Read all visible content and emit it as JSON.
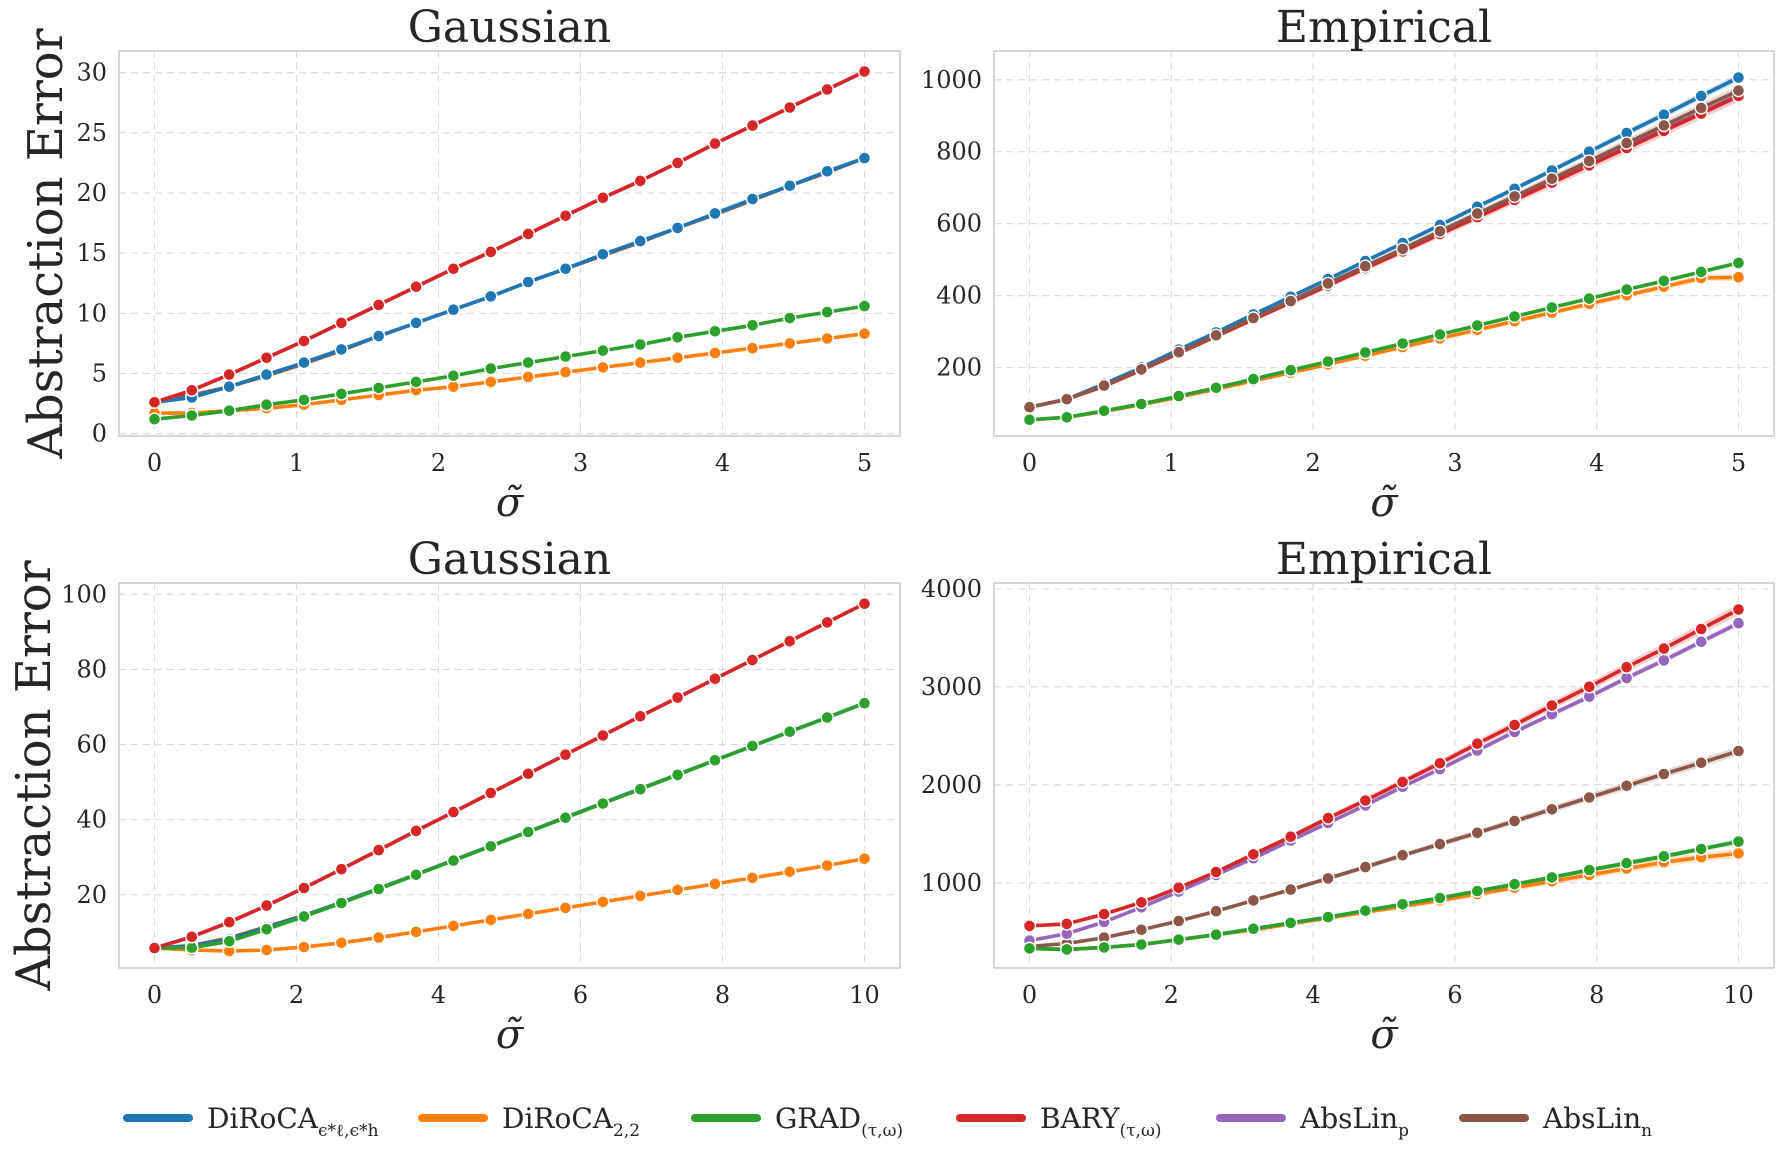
{
  "legend": [
    {
      "name": "DiRoCA",
      "sub": "ϵ*ℓ,ϵ*h",
      "color": "#1f77b4"
    },
    {
      "name": "DiRoCA",
      "sub": "2,2",
      "color": "#ff7f0e"
    },
    {
      "name": "GRAD",
      "sub": "(τ,ω)",
      "color": "#2ca02c"
    },
    {
      "name": "BARY",
      "sub": "(τ,ω)",
      "color": "#d62728"
    },
    {
      "name": "AbsLin",
      "sub": "p",
      "color": "#9467bd"
    },
    {
      "name": "AbsLin",
      "sub": "n",
      "color": "#8c564b"
    }
  ],
  "chart_data": [
    {
      "type": "line",
      "title": "Gaussian",
      "ylabel": "Abstraction Error",
      "xlabel": "σ̃",
      "xlim": [
        -0.25,
        5.25
      ],
      "ylim": [
        -0.2,
        31.8
      ],
      "xticks": [
        0,
        1,
        2,
        3,
        4,
        5
      ],
      "yticks": [
        0,
        5,
        10,
        15,
        20,
        25,
        30
      ],
      "x": [
        0,
        0.263,
        0.526,
        0.789,
        1.053,
        1.316,
        1.579,
        1.842,
        2.105,
        2.368,
        2.632,
        2.895,
        3.158,
        3.421,
        3.684,
        3.947,
        4.211,
        4.474,
        4.737,
        5.0
      ],
      "series": [
        {
          "name": "AbsLin_n",
          "color": "#8c564b",
          "values": [
            2.6,
            3.2,
            3.9,
            4.8,
            5.8,
            6.9,
            8.1,
            9.2,
            10.3,
            11.4,
            12.6,
            13.7,
            14.8,
            15.9,
            17.1,
            18.2,
            19.4,
            20.6,
            21.7,
            22.9
          ]
        },
        {
          "name": "AbsLin_p",
          "color": "#9467bd",
          "values": [
            2.6,
            3.6,
            4.9,
            6.3,
            7.7,
            9.2,
            10.7,
            12.2,
            13.7,
            15.1,
            16.6,
            18.1,
            19.6,
            21.0,
            22.5,
            24.1,
            25.6,
            27.1,
            28.6,
            30.1
          ]
        },
        {
          "name": "DiRoCA_ϵ",
          "color": "#1f77b4",
          "values": [
            2.6,
            3.0,
            3.9,
            4.9,
            5.9,
            7.0,
            8.1,
            9.2,
            10.3,
            11.4,
            12.6,
            13.7,
            14.9,
            16.0,
            17.1,
            18.3,
            19.5,
            20.6,
            21.8,
            22.9
          ]
        },
        {
          "name": "DiRoCA_2,2",
          "color": "#ff7f0e",
          "values": [
            1.7,
            1.7,
            1.9,
            2.1,
            2.4,
            2.8,
            3.2,
            3.6,
            3.9,
            4.3,
            4.7,
            5.1,
            5.5,
            5.9,
            6.3,
            6.7,
            7.1,
            7.5,
            7.9,
            8.3
          ]
        },
        {
          "name": "GRAD_(τ,ω)",
          "color": "#2ca02c",
          "values": [
            1.2,
            1.5,
            1.9,
            2.4,
            2.8,
            3.3,
            3.8,
            4.3,
            4.8,
            5.4,
            5.9,
            6.4,
            6.9,
            7.4,
            8.0,
            8.5,
            9.0,
            9.6,
            10.1,
            10.6
          ]
        },
        {
          "name": "BARY_(τ,ω)",
          "color": "#d62728",
          "values": [
            2.6,
            3.6,
            4.9,
            6.3,
            7.7,
            9.2,
            10.7,
            12.2,
            13.7,
            15.1,
            16.6,
            18.1,
            19.6,
            21.0,
            22.5,
            24.1,
            25.6,
            27.1,
            28.6,
            30.1
          ]
        }
      ]
    },
    {
      "type": "line",
      "title": "Empirical",
      "xlabel": "σ̃",
      "xlim": [
        -0.25,
        5.25
      ],
      "ylim": [
        10,
        1080
      ],
      "xticks": [
        0,
        1,
        2,
        3,
        4,
        5
      ],
      "yticks": [
        200,
        400,
        600,
        800,
        1000
      ],
      "x": [
        0,
        0.263,
        0.526,
        0.789,
        1.053,
        1.316,
        1.579,
        1.842,
        2.105,
        2.368,
        2.632,
        2.895,
        3.158,
        3.421,
        3.684,
        3.947,
        4.211,
        4.474,
        4.737,
        5.0
      ],
      "series": [
        {
          "name": "AbsLin_p",
          "color": "#9467bd",
          "band": 10,
          "values": [
            90,
            112,
            150,
            195,
            243,
            290,
            338,
            385,
            433,
            481,
            528,
            576,
            624,
            671,
            719,
            766,
            814,
            862,
            909,
            957
          ]
        },
        {
          "name": "DiRoCA_ϵ",
          "color": "#1f77b4",
          "band": 9,
          "values": [
            90,
            112,
            155,
            200,
            250,
            298,
            348,
            397,
            446,
            496,
            546,
            596,
            647,
            697,
            748,
            800,
            852,
            903,
            955,
            1006
          ]
        },
        {
          "name": "BARY_(τ,ω)",
          "color": "#d62728",
          "band": 14,
          "values": [
            90,
            112,
            148,
            193,
            240,
            287,
            334,
            381,
            428,
            476,
            523,
            571,
            618,
            666,
            714,
            762,
            810,
            858,
            906,
            955
          ]
        },
        {
          "name": "AbsLin_n",
          "color": "#8c564b",
          "band": 12,
          "values": [
            90,
            112,
            150,
            195,
            243,
            290,
            338,
            385,
            434,
            482,
            530,
            579,
            628,
            676,
            725,
            774,
            824,
            873,
            922,
            970
          ]
        },
        {
          "name": "DiRoCA_2,2",
          "color": "#ff7f0e",
          "band": 8,
          "values": [
            55,
            62,
            78,
            97,
            118,
            140,
            163,
            186,
            209,
            233,
            257,
            281,
            305,
            329,
            353,
            377,
            401,
            425,
            449,
            451
          ]
        },
        {
          "name": "GRAD_(τ,ω)",
          "color": "#2ca02c",
          "band": 5,
          "values": [
            55,
            62,
            80,
            99,
            121,
            144,
            168,
            193,
            217,
            242,
            267,
            292,
            317,
            342,
            367,
            392,
            417,
            441,
            466,
            491
          ]
        }
      ]
    },
    {
      "type": "line",
      "title": "Gaussian",
      "ylabel": "Abstraction Error",
      "xlabel": "σ̃",
      "xlim": [
        -0.5,
        10.5
      ],
      "ylim": [
        0.5,
        103
      ],
      "xticks": [
        0,
        2,
        4,
        6,
        8,
        10
      ],
      "yticks": [
        20,
        40,
        60,
        80,
        100
      ],
      "x": [
        0,
        0.526,
        1.053,
        1.579,
        2.105,
        2.632,
        3.158,
        3.684,
        4.211,
        4.737,
        5.263,
        5.789,
        6.316,
        6.842,
        7.368,
        7.895,
        8.421,
        8.947,
        9.474,
        10.0
      ],
      "series": [
        {
          "name": "AbsLin_n",
          "color": "#8c564b",
          "values": [
            5.8,
            6.5,
            8.5,
            11.5,
            14.5,
            18.0,
            21.7,
            25.4,
            29.2,
            33.0,
            36.8,
            40.6,
            44.4,
            48.2,
            52.0,
            55.8,
            59.6,
            63.4,
            67.2,
            71.0
          ]
        },
        {
          "name": "AbsLin_p",
          "color": "#9467bd",
          "values": [
            5.8,
            8.8,
            12.7,
            17.1,
            21.8,
            26.8,
            31.9,
            37.0,
            42.0,
            47.1,
            52.2,
            57.3,
            62.4,
            67.5,
            72.5,
            77.5,
            82.5,
            87.5,
            92.5,
            97.5
          ]
        },
        {
          "name": "DiRoCA_ϵ",
          "color": "#1f77b4",
          "values": [
            5.8,
            6.3,
            8.1,
            11.2,
            14.4,
            18.0,
            21.7,
            25.4,
            29.2,
            33.0,
            36.8,
            40.6,
            44.4,
            48.2,
            52.0,
            55.8,
            59.6,
            63.4,
            67.2,
            71.0
          ]
        },
        {
          "name": "DiRoCA_2,2",
          "color": "#ff7f0e",
          "values": [
            5.8,
            5.3,
            5.0,
            5.3,
            6.1,
            7.2,
            8.6,
            10.1,
            11.7,
            13.3,
            14.9,
            16.5,
            18.1,
            19.7,
            21.3,
            22.9,
            24.5,
            26.1,
            27.8,
            29.6
          ]
        },
        {
          "name": "GRAD_(τ,ω)",
          "color": "#2ca02c",
          "values": [
            5.8,
            5.9,
            7.6,
            10.8,
            14.2,
            17.8,
            21.5,
            25.3,
            29.1,
            32.9,
            36.7,
            40.5,
            44.3,
            48.1,
            51.9,
            55.8,
            59.6,
            63.4,
            67.2,
            71.0
          ]
        },
        {
          "name": "BARY_(τ,ω)",
          "color": "#d62728",
          "values": [
            5.8,
            8.8,
            12.7,
            17.1,
            21.8,
            26.8,
            31.9,
            37.0,
            42.0,
            47.1,
            52.2,
            57.3,
            62.4,
            67.5,
            72.5,
            77.5,
            82.5,
            87.5,
            92.5,
            97.5
          ]
        }
      ]
    },
    {
      "type": "line",
      "title": "Empirical",
      "xlabel": "σ̃",
      "xlim": [
        -0.5,
        10.5
      ],
      "ylim": [
        130,
        4060
      ],
      "xticks": [
        0,
        2,
        4,
        6,
        8,
        10
      ],
      "yticks": [
        1000,
        2000,
        3000,
        4000
      ],
      "x": [
        0,
        0.526,
        1.053,
        1.579,
        2.105,
        2.632,
        3.158,
        3.684,
        4.211,
        4.737,
        5.263,
        5.789,
        6.316,
        6.842,
        7.368,
        7.895,
        8.421,
        8.947,
        9.474,
        10.0
      ],
      "series": [
        {
          "name": "AbsLin_n",
          "color": "#8c564b",
          "band": 40,
          "values": [
            350,
            380,
            440,
            520,
            610,
            710,
            820,
            930,
            1045,
            1160,
            1280,
            1395,
            1510,
            1630,
            1750,
            1870,
            1990,
            2110,
            2225,
            2345
          ]
        },
        {
          "name": "AbsLin_p",
          "color": "#9467bd",
          "band": 30,
          "values": [
            410,
            480,
            600,
            750,
            910,
            1080,
            1250,
            1430,
            1610,
            1790,
            1980,
            2160,
            2350,
            2540,
            2720,
            2900,
            3090,
            3270,
            3460,
            3650
          ]
        },
        {
          "name": "DiRoCA_ϵ",
          "color": "#1f77b4",
          "values": [
            330,
            320,
            340,
            370,
            420,
            470,
            530,
            590,
            650,
            715,
            780,
            845,
            915,
            985,
            1055,
            1130,
            1200,
            1270,
            1345,
            1420
          ]
        },
        {
          "name": "DiRoCA_2,2",
          "color": "#ff7f0e",
          "band": 40,
          "values": [
            330,
            320,
            340,
            370,
            420,
            470,
            520,
            580,
            640,
            700,
            760,
            820,
            885,
            950,
            1015,
            1080,
            1145,
            1210,
            1260,
            1300
          ]
        },
        {
          "name": "GRAD_(τ,ω)",
          "color": "#2ca02c",
          "band": 25,
          "values": [
            330,
            320,
            340,
            370,
            420,
            470,
            530,
            590,
            650,
            715,
            780,
            845,
            915,
            985,
            1055,
            1130,
            1200,
            1270,
            1345,
            1420
          ]
        },
        {
          "name": "BARY_(τ,ω)",
          "color": "#d62728",
          "band": 50,
          "values": [
            560,
            580,
            680,
            800,
            950,
            1110,
            1290,
            1470,
            1660,
            1840,
            2030,
            2220,
            2420,
            2610,
            2810,
            3000,
            3200,
            3390,
            3590,
            3790
          ]
        }
      ]
    }
  ]
}
